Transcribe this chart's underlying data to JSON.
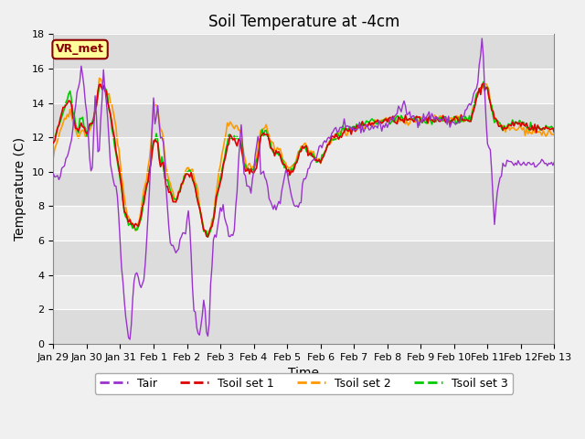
{
  "title": "Soil Temperature at -4cm",
  "xlabel": "Time",
  "ylabel": "Temperature (C)",
  "ylim": [
    0,
    18
  ],
  "site_label": "VR_met",
  "line_colors": {
    "Tair": "#9933CC",
    "Tsoil1": "#DD0000",
    "Tsoil2": "#FF9900",
    "Tsoil3": "#00CC00"
  },
  "legend_labels": [
    "Tair",
    "Tsoil set 1",
    "Tsoil set 2",
    "Tsoil set 3"
  ],
  "xtick_labels": [
    "Jan 29",
    "Jan 30",
    "Jan 31",
    "Feb 1",
    "Feb 2",
    "Feb 3",
    "Feb 4",
    "Feb 5",
    "Feb 6",
    "Feb 7",
    "Feb 8",
    "Feb 9",
    "Feb 10",
    "Feb 11",
    "Feb 12",
    "Feb 13"
  ],
  "band_colors": [
    "#DCDCDC",
    "#EBEBEB"
  ],
  "title_fontsize": 12,
  "label_fontsize": 10,
  "tick_fontsize": 8,
  "figsize": [
    6.4,
    4.8
  ],
  "dpi": 100
}
